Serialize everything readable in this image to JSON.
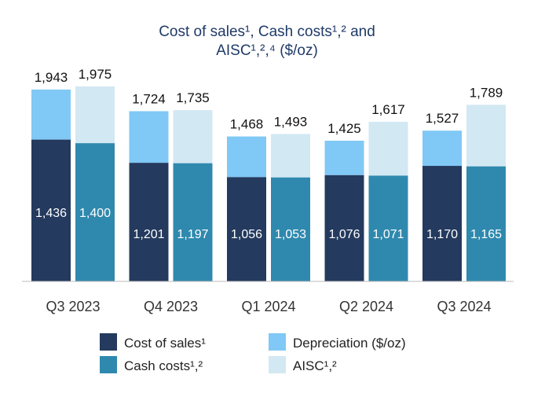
{
  "chart_data": {
    "type": "bar",
    "title_lines": [
      "Cost of sales¹, Cash costs¹,² and",
      "AISC¹,²,⁴ ($/oz)"
    ],
    "categories": [
      "Q3 2023",
      "Q4 2023",
      "Q1 2024",
      "Q2 2024",
      "Q3 2024"
    ],
    "series": [
      {
        "name": "Cost of sales¹",
        "values": [
          1436,
          1201,
          1056,
          1076,
          1170
        ]
      },
      {
        "name": "Depreciation ($/oz)",
        "totals": [
          1943,
          1724,
          1468,
          1425,
          1527
        ]
      },
      {
        "name": "Cash costs¹,²",
        "values": [
          1400,
          1197,
          1053,
          1071,
          1165
        ]
      },
      {
        "name": "AISC¹,²",
        "totals": [
          1975,
          1735,
          1493,
          1617,
          1789
        ]
      }
    ],
    "value_labels": {
      "cost_of_sales": [
        "1,436",
        "1,201",
        "1,056",
        "1,076",
        "1,170"
      ],
      "cost_of_sales_total": [
        "1,943",
        "1,724",
        "1,468",
        "1,425",
        "1,527"
      ],
      "cash_costs": [
        "1,400",
        "1,197",
        "1,053",
        "1,071",
        "1,165"
      ],
      "aisc": [
        "1,975",
        "1,735",
        "1,493",
        "1,617",
        "1,789"
      ]
    },
    "ylim": [
      0,
      2000
    ],
    "colors": {
      "Cost of sales¹": "#243a5e",
      "Depreciation ($/oz)": "#80c8f5",
      "Cash costs¹,²": "#2f89ae",
      "AISC¹,²": "#d2e8f3"
    },
    "legend": {
      "position": "bottom",
      "items": [
        {
          "label": "Cost of sales¹",
          "color": "#243a5e"
        },
        {
          "label": "Depreciation ($/oz)",
          "color": "#80c8f5"
        },
        {
          "label": "Cash costs¹,²",
          "color": "#2f89ae"
        },
        {
          "label": "AISC¹,²",
          "color": "#d2e8f3"
        }
      ]
    },
    "grid": false,
    "axis_color": "#bbbbbb"
  }
}
